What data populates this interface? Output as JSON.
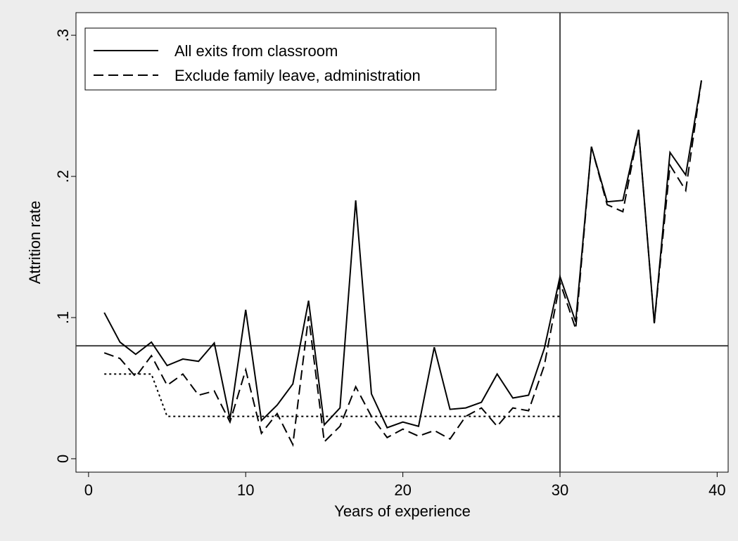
{
  "chart_data": {
    "type": "line",
    "x_label": "Years of experience",
    "y_label": "Attrition rate",
    "x": [
      1,
      2,
      3,
      4,
      5,
      6,
      7,
      8,
      9,
      10,
      11,
      12,
      13,
      14,
      15,
      16,
      17,
      18,
      19,
      20,
      21,
      22,
      23,
      24,
      25,
      26,
      27,
      28,
      29,
      30,
      31,
      32,
      33,
      34,
      35,
      36,
      37,
      38,
      39
    ],
    "series": [
      {
        "name": "All exits from classroom",
        "color": "#000000",
        "style": "solid",
        "values": [
          0.1035,
          0.0826,
          0.074,
          0.0826,
          0.066,
          0.0706,
          0.069,
          0.082,
          0.028,
          0.1055,
          0.027,
          0.038,
          0.053,
          0.112,
          0.024,
          0.036,
          0.183,
          0.046,
          0.022,
          0.026,
          0.023,
          0.079,
          0.035,
          0.036,
          0.04,
          0.06,
          0.043,
          0.045,
          0.078,
          0.129,
          0.097,
          0.221,
          0.182,
          0.183,
          0.233,
          0.096,
          0.217,
          0.201,
          0.268
        ]
      },
      {
        "name": "Exclude family leave, administration",
        "color": "#000000",
        "style": "dashed",
        "values": [
          0.075,
          0.071,
          0.058,
          0.073,
          0.052,
          0.06,
          0.045,
          0.048,
          0.026,
          0.063,
          0.018,
          0.032,
          0.01,
          0.101,
          0.012,
          0.023,
          0.051,
          0.03,
          0.015,
          0.021,
          0.016,
          0.02,
          0.014,
          0.03,
          0.036,
          0.023,
          0.036,
          0.034,
          0.066,
          0.125,
          0.092,
          0.221,
          0.18,
          0.175,
          0.233,
          0.096,
          0.208,
          0.19,
          0.268
        ]
      },
      {
        "color": "#000000",
        "style": "dotted",
        "values": [
          0.06,
          0.06,
          0.06,
          0.06,
          0.03,
          0.03,
          0.03,
          0.03,
          0.03,
          0.03,
          0.03,
          0.03,
          0.03,
          0.03,
          0.03,
          0.03,
          0.03,
          0.03,
          0.03,
          0.03,
          0.03,
          0.03,
          0.03,
          0.03,
          0.03,
          0.03,
          0.03,
          0.03,
          0.03,
          0.03,
          null,
          null,
          null,
          null,
          null,
          null,
          null,
          null,
          null
        ]
      }
    ],
    "xlim": [
      -0.8,
      40.7
    ],
    "ylim": [
      -0.0095,
      0.316
    ],
    "xticks": [
      0,
      10,
      20,
      30,
      40
    ],
    "yticks": [
      0,
      {
        "value": 0.1,
        "label": ".1"
      },
      {
        "value": 0.2,
        "label": ".2"
      },
      {
        "value": 0.3,
        "label": ".3"
      }
    ],
    "vline": 30,
    "hline": 0.08,
    "legend": "top-left"
  }
}
